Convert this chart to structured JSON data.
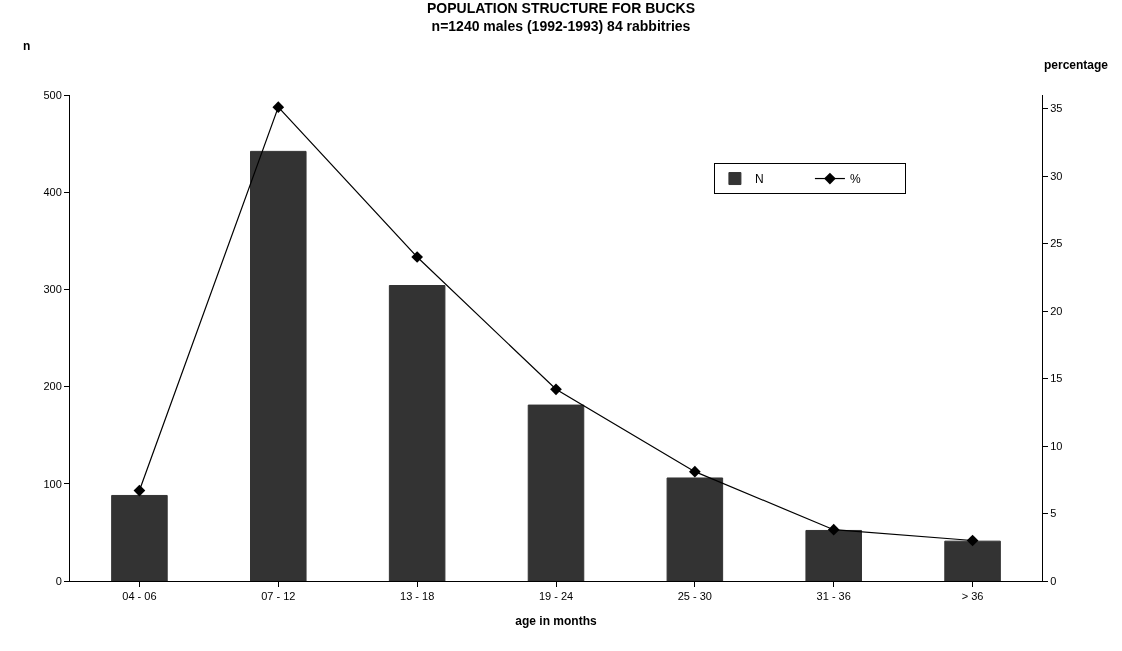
{
  "chart_data": {
    "type": "bar",
    "title": "POPULATION STRUCTURE FOR BUCKS",
    "subtitle": "n=1240 males (1992-1993) 84 rabbitries",
    "xlabel": "age in months",
    "ylabel": "n",
    "y2label": "percentage",
    "categories": [
      "04 - 06",
      "07 - 12",
      "13 - 18",
      "19 - 24",
      "25 - 30",
      "31 - 36",
      "> 36"
    ],
    "series": [
      {
        "name": "N",
        "color": "#333333",
        "values": [
          88,
          442,
          304,
          181,
          106,
          52,
          41
        ]
      },
      {
        "name": "%",
        "type": "line",
        "axis": "y2",
        "color": "#000000",
        "marker": "diamond",
        "values": [
          6.7,
          35.1,
          24.0,
          14.2,
          8.1,
          3.8,
          3.0
        ]
      }
    ],
    "ylim": [
      0,
      500
    ],
    "yticks": [
      0,
      100,
      200,
      300,
      400,
      500
    ],
    "y2lim": [
      0,
      36
    ],
    "y2ticks": [
      0,
      5,
      10,
      15,
      20,
      25,
      30,
      35
    ],
    "legend": "top right"
  }
}
